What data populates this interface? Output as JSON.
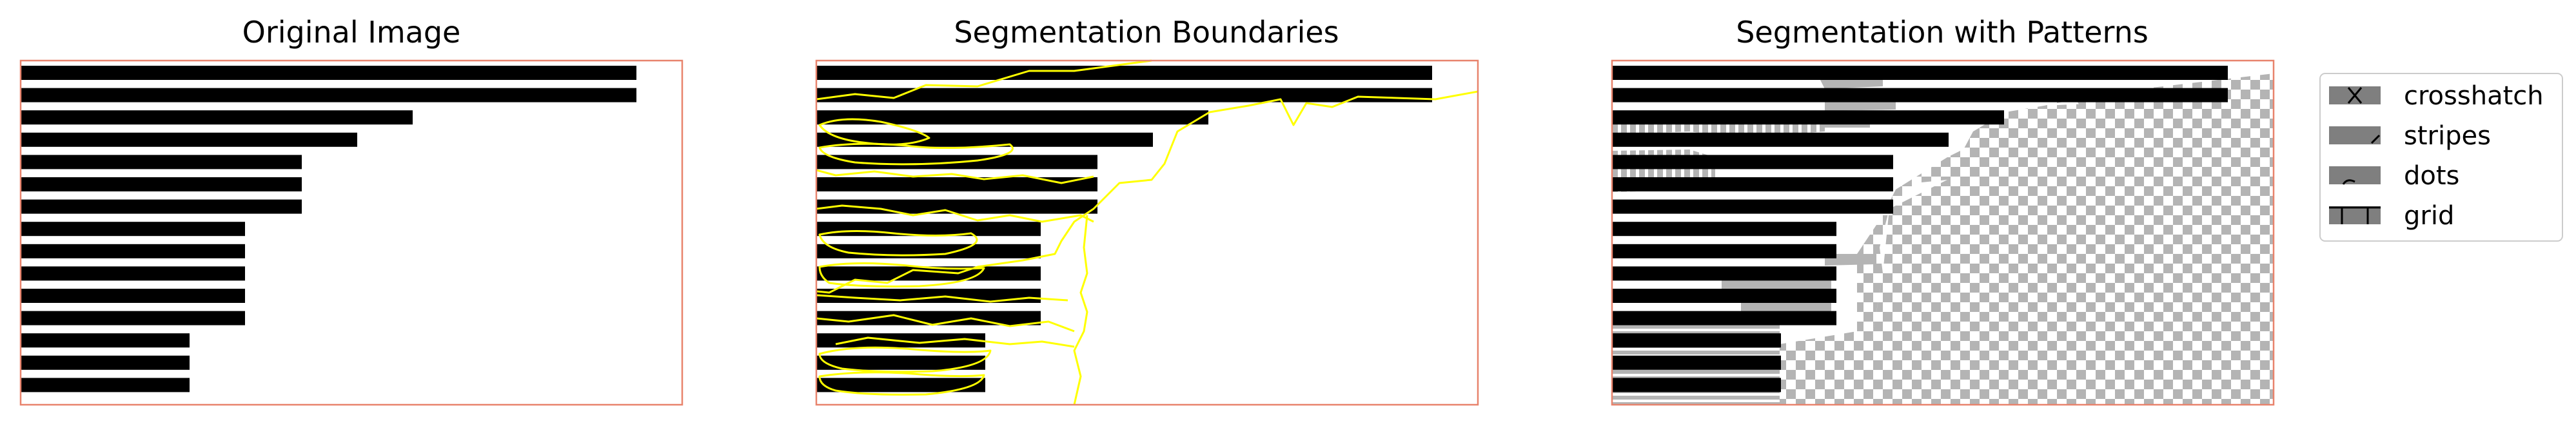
{
  "panels": [
    {
      "id": "original",
      "title": "Original Image"
    },
    {
      "id": "boundaries",
      "title": "Segmentation Boundaries"
    },
    {
      "id": "patterns",
      "title": "Segmentation with Patterns"
    }
  ],
  "legend": {
    "items": [
      {
        "label": "crosshatch",
        "pattern": "crosshatch"
      },
      {
        "label": "stripes",
        "pattern": "stripes"
      },
      {
        "label": "dots",
        "pattern": "dots"
      },
      {
        "label": "grid",
        "pattern": "grid"
      }
    ]
  },
  "colors": {
    "frame": "#e8836c",
    "bar": "#000000",
    "boundary": "#ffff00",
    "pattern_gray": "#b4b4b4",
    "legend_swatch": "#7f7f7f"
  }
}
